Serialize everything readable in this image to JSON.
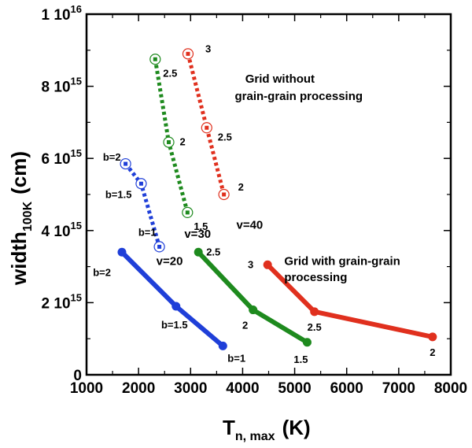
{
  "chart_data": {
    "type": "line",
    "title": "",
    "xlabel": {
      "main": "T",
      "sub": "n, max",
      "unit": "(K)"
    },
    "ylabel": {
      "main": "width",
      "sub": "100K",
      "unit": "(cm)"
    },
    "xlim": [
      1000,
      8000
    ],
    "ylim": [
      0,
      1e+16
    ],
    "x_ticks": [
      1000,
      2000,
      3000,
      4000,
      5000,
      6000,
      7000,
      8000
    ],
    "y_ticks": [
      {
        "value": 0,
        "label": "0"
      },
      {
        "value": 2000000000000000.0,
        "mant": "2 10",
        "exp": "15"
      },
      {
        "value": 4000000000000000.0,
        "mant": "4 10",
        "exp": "15"
      },
      {
        "value": 6000000000000000.0,
        "mant": "6 10",
        "exp": "15"
      },
      {
        "value": 8000000000000000.0,
        "mant": "8 10",
        "exp": "15"
      },
      {
        "value": 1e+16,
        "mant": "1 10",
        "exp": "16"
      }
    ],
    "colors": {
      "blue": "#1f3fd8",
      "green": "#1e8a1e",
      "red": "#e0301e"
    },
    "series": [
      {
        "name": "v=20 with grain-grain",
        "color": "blue",
        "style": "solid",
        "marker": "filled",
        "points": [
          {
            "x": 1680,
            "y": 3400000000000000.0,
            "label": "b=2"
          },
          {
            "x": 2720,
            "y": 1900000000000000.0,
            "label": "b=1.5"
          },
          {
            "x": 3620,
            "y": 800000000000000.0,
            "label": "b=1"
          }
        ]
      },
      {
        "name": "v=30 with grain-grain",
        "color": "green",
        "style": "solid",
        "marker": "filled",
        "points": [
          {
            "x": 3150,
            "y": 3400000000000000.0,
            "label": "2.5"
          },
          {
            "x": 4200,
            "y": 1800000000000000.0,
            "label": "2"
          },
          {
            "x": 5240,
            "y": 900000000000000.0,
            "label": "1.5"
          }
        ]
      },
      {
        "name": "v=40 with grain-grain",
        "color": "red",
        "style": "solid",
        "marker": "filled",
        "points": [
          {
            "x": 4480,
            "y": 3050000000000000.0,
            "label": "3"
          },
          {
            "x": 5380,
            "y": 1750000000000000.0,
            "label": "2.5"
          },
          {
            "x": 7650,
            "y": 1050000000000000.0,
            "label": "2"
          }
        ]
      },
      {
        "name": "v=20 without grain-grain",
        "color": "blue",
        "style": "dotted",
        "marker": "open",
        "points": [
          {
            "x": 1750,
            "y": 5850000000000000.0,
            "label": "b=2"
          },
          {
            "x": 2050,
            "y": 5300000000000000.0,
            "label": "b=1.5"
          },
          {
            "x": 2400,
            "y": 3550000000000000.0,
            "label": "b=1"
          }
        ]
      },
      {
        "name": "v=30 without grain-grain",
        "color": "green",
        "style": "dotted",
        "marker": "open",
        "points": [
          {
            "x": 2320,
            "y": 8750000000000000.0,
            "label": "2.5"
          },
          {
            "x": 2580,
            "y": 6450000000000000.0,
            "label": "2"
          },
          {
            "x": 2940,
            "y": 4500000000000000.0,
            "label": "1.5"
          }
        ]
      },
      {
        "name": "v=40 without grain-grain",
        "color": "red",
        "style": "dotted",
        "marker": "open",
        "points": [
          {
            "x": 2950,
            "y": 8900000000000000.0,
            "label": "3"
          },
          {
            "x": 3310,
            "y": 6850000000000000.0,
            "label": "2.5"
          },
          {
            "x": 3640,
            "y": 5000000000000000.0,
            "label": "2"
          }
        ]
      }
    ],
    "annotations": [
      {
        "id": "grid-without-line1",
        "text": "Grid without",
        "x": 4050,
        "y": 8100000000000000.0,
        "color": "black"
      },
      {
        "id": "grid-without-line2",
        "text": "grain-grain processing",
        "x": 3850,
        "y": 7620000000000000.0,
        "color": "black"
      },
      {
        "id": "grid-with-line1",
        "text": "Grid with grain-grain",
        "x": 4800,
        "y": 3050000000000000.0,
        "color": "black"
      },
      {
        "id": "grid-with-line2",
        "text": "processing",
        "x": 4800,
        "y": 2600000000000000.0,
        "color": "black"
      },
      {
        "id": "v20-label",
        "text": "v=20",
        "x": 2340,
        "y": 3050000000000000.0,
        "color": "blue"
      },
      {
        "id": "v30-label",
        "text": "v=30",
        "x": 2880,
        "y": 3800000000000000.0,
        "color": "green"
      },
      {
        "id": "v40-label",
        "text": "v=40",
        "x": 3880,
        "y": 4050000000000000.0,
        "color": "red"
      }
    ]
  }
}
